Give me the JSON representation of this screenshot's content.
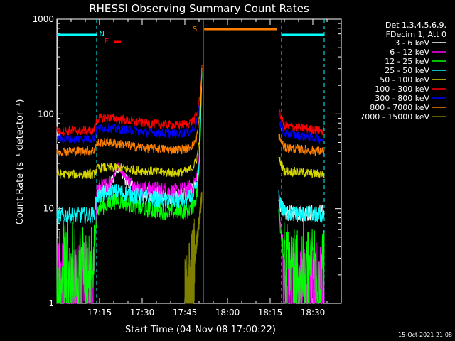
{
  "chart_data": {
    "type": "line",
    "title": "RHESSI Observing Summary Count Rates",
    "xlabel": "Start Time (04-Nov-08 17:00:22)",
    "ylabel": "Count Rate (s⁻¹ detector⁻¹)",
    "yscale": "log",
    "xlim_min": [
      0,
      100
    ],
    "ylim": [
      1,
      1000
    ],
    "x_ticks": [
      {
        "min": 15,
        "label": "17:15"
      },
      {
        "min": 30,
        "label": "17:30"
      },
      {
        "min": 45,
        "label": "17:45"
      },
      {
        "min": 60,
        "label": "18:00"
      },
      {
        "min": 75,
        "label": "18:15"
      },
      {
        "min": 90,
        "label": "18:30"
      }
    ],
    "y_ticks": [
      {
        "value": 1,
        "label": "1"
      },
      {
        "value": 10,
        "label": "10"
      },
      {
        "value": 100,
        "label": "100"
      },
      {
        "value": 1000,
        "label": "1000"
      }
    ],
    "legend_header": [
      "Det 1,3,4,5,6,9,",
      "FDecim 1, Att 0"
    ],
    "legend_position": "top-right",
    "series": [
      {
        "name": "3 - 6 keV",
        "color": "#ffffff",
        "x": [
          0,
          1,
          13,
          14,
          15,
          16,
          18,
          20,
          21,
          22,
          24,
          26,
          28,
          30,
          32,
          35,
          38,
          40,
          42,
          44,
          46,
          48,
          49,
          49.5,
          50,
          50.5,
          51
        ],
        "y": [
          null,
          null,
          null,
          14,
          15,
          15,
          16,
          21,
          26,
          27,
          20,
          17,
          15,
          14,
          14,
          14,
          14,
          13.5,
          13.5,
          14,
          15,
          17,
          20,
          23,
          30,
          80,
          300
        ]
      },
      {
        "name": "6 - 12 keV",
        "color": "#ff00ff",
        "x": [
          0,
          1,
          13,
          14,
          15,
          16,
          18,
          20,
          21,
          22,
          24,
          26,
          28,
          30,
          32,
          35,
          38,
          40,
          42,
          44,
          46,
          48,
          49,
          49.5,
          50,
          50.5,
          51
        ],
        "y": [
          1.5,
          1.5,
          1.5,
          16,
          17,
          17,
          18,
          22,
          27,
          28,
          22,
          19,
          17,
          16,
          16,
          16,
          15.5,
          15,
          15,
          15.5,
          16,
          18,
          21,
          25,
          32,
          85,
          300
        ]
      },
      {
        "name": "12 - 25 keV",
        "color": "#00ff00",
        "x": [
          0,
          1,
          13,
          14,
          15,
          16,
          18,
          20,
          22,
          24,
          26,
          28,
          30,
          32,
          35,
          38,
          40,
          42,
          44,
          46,
          48,
          49,
          49.5,
          50,
          50.5,
          51
        ],
        "y": [
          2.5,
          2.5,
          2.5,
          9.5,
          10,
          10.5,
          11,
          12,
          12,
          11.5,
          11,
          10.5,
          10,
          9.8,
          9.5,
          9.3,
          9.2,
          9.2,
          9.3,
          9.5,
          11,
          13,
          16,
          25,
          70,
          300
        ]
      },
      {
        "name": "25 - 50 keV",
        "color": "#00ffff",
        "x": [
          0,
          1,
          13,
          14,
          15,
          16,
          18,
          20,
          22,
          24,
          26,
          28,
          30,
          32,
          35,
          38,
          40,
          42,
          44,
          46,
          48,
          49,
          49.5,
          50,
          50.5,
          51
        ],
        "y": [
          8.5,
          8.5,
          8.5,
          13,
          13.5,
          14,
          14.5,
          15,
          15,
          14.5,
          14,
          13.5,
          13,
          12.8,
          12.5,
          12.2,
          12,
          12,
          12.2,
          12.5,
          14,
          16,
          19,
          28,
          75,
          300
        ]
      },
      {
        "name": "50 - 100 keV",
        "color": "#d7d700",
        "x": [
          0,
          1,
          13,
          14,
          15,
          16,
          18,
          20,
          22,
          24,
          26,
          28,
          30,
          32,
          35,
          38,
          40,
          42,
          44,
          46,
          48,
          49,
          49.5,
          50,
          50.5,
          51
        ],
        "y": [
          23,
          23,
          23,
          26,
          27,
          27,
          27,
          27,
          27,
          26.5,
          26,
          25.5,
          25,
          25,
          24.5,
          24,
          24,
          24,
          24.5,
          25,
          28,
          32,
          38,
          50,
          100,
          300
        ]
      },
      {
        "name": "100 - 300 keV",
        "color": "#ff0000",
        "x": [
          0,
          1,
          13,
          14,
          15,
          16,
          18,
          20,
          22,
          24,
          26,
          28,
          30,
          32,
          35,
          38,
          40,
          42,
          44,
          46,
          48,
          49,
          49.5,
          50,
          50.5,
          51
        ],
        "y": [
          66,
          66,
          67,
          86,
          90,
          91,
          91,
          90,
          88,
          86,
          84,
          82,
          80,
          79,
          78,
          77,
          76.5,
          76,
          77,
          78,
          85,
          95,
          110,
          130,
          170,
          300
        ]
      },
      {
        "name": "300 - 800 keV",
        "color": "#0000ff",
        "x": [
          0,
          1,
          13,
          14,
          15,
          16,
          18,
          20,
          22,
          24,
          26,
          28,
          30,
          32,
          35,
          38,
          40,
          42,
          44,
          46,
          48,
          49,
          49.5,
          50,
          50.5,
          51
        ],
        "y": [
          54,
          54,
          55,
          68,
          70,
          71,
          71,
          70,
          69,
          68,
          67,
          66,
          65,
          64,
          63,
          62,
          62,
          62,
          63,
          64,
          70,
          80,
          95,
          115,
          160,
          300
        ]
      },
      {
        "name": "800 - 7000 keV",
        "color": "#ff8000",
        "x": [
          0,
          1,
          13,
          14,
          15,
          16,
          18,
          20,
          22,
          24,
          26,
          28,
          30,
          32,
          35,
          38,
          40,
          42,
          44,
          46,
          48,
          49,
          49.5,
          50,
          50.5,
          51
        ],
        "y": [
          40,
          40,
          41,
          48,
          50,
          50,
          50,
          49,
          48,
          47,
          46,
          45,
          44,
          43.5,
          43,
          42.5,
          42,
          42,
          42.5,
          43.5,
          48,
          55,
          65,
          85,
          140,
          300
        ]
      },
      {
        "name": "7000 - 15000 keV",
        "color": "#808000",
        "x": [
          44,
          45,
          46,
          47,
          48,
          49,
          50,
          50.5,
          51
        ],
        "y": [
          null,
          1,
          1.2,
          1.6,
          2.4,
          4,
          7,
          10,
          14
        ]
      }
    ],
    "series_after_gap": {
      "x_start": 78,
      "x_end": 94,
      "values": {
        "3 - 6 keV": [
          12,
          9,
          9
        ],
        "6 - 12 keV": [
          13,
          1.5,
          1.5
        ],
        "12 - 25 keV": [
          10,
          2.5,
          2.5
        ],
        "25 - 50 keV": [
          13,
          9,
          8.5
        ],
        "50 - 100 keV": [
          34,
          25,
          23
        ],
        "100 - 300 keV": [
          105,
          75,
          66
        ],
        "300 - 800 keV": [
          88,
          62,
          54
        ],
        "800 - 7000 keV": [
          58,
          44,
          40
        ]
      }
    },
    "annotations": [
      {
        "label": "N",
        "color": "#00ffff"
      },
      {
        "label": "F",
        "color": "#ff0000"
      },
      {
        "label": "S",
        "color": "#ff8000"
      }
    ],
    "footer_date": "15-Oct-2021 21:08"
  }
}
